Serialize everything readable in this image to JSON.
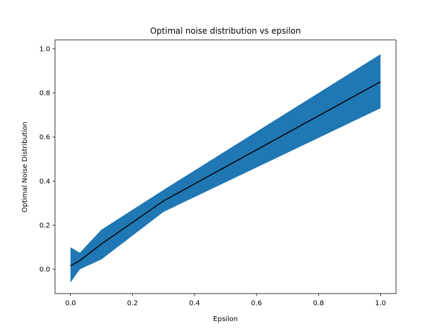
{
  "chart_data": {
    "type": "area",
    "title": "Optimal noise distribution vs epsilon",
    "xlabel": "Epsilon",
    "ylabel": "Optimal Noise Distribution",
    "xlim": [
      -0.05,
      1.05
    ],
    "ylim": [
      -0.11,
      1.04
    ],
    "xticks": [
      0.0,
      0.2,
      0.4,
      0.6,
      0.8,
      1.0
    ],
    "xtick_labels": [
      "0.0",
      "0.2",
      "0.4",
      "0.6",
      "0.8",
      "1.0"
    ],
    "yticks": [
      0.0,
      0.2,
      0.4,
      0.6,
      0.8,
      1.0
    ],
    "ytick_labels": [
      "0.0",
      "0.2",
      "0.4",
      "0.6",
      "0.8",
      "1.0"
    ],
    "grid": false,
    "x": [
      0.0,
      0.03,
      0.1,
      0.3,
      1.0
    ],
    "series": [
      {
        "role": "band",
        "color": "#1f77b4",
        "lower": [
          -0.06,
          0.0,
          0.045,
          0.26,
          0.73
        ],
        "upper": [
          0.1,
          0.075,
          0.18,
          0.36,
          0.975
        ]
      },
      {
        "role": "line",
        "color": "#000000",
        "values": [
          0.015,
          0.04,
          0.115,
          0.31,
          0.85
        ]
      }
    ]
  }
}
